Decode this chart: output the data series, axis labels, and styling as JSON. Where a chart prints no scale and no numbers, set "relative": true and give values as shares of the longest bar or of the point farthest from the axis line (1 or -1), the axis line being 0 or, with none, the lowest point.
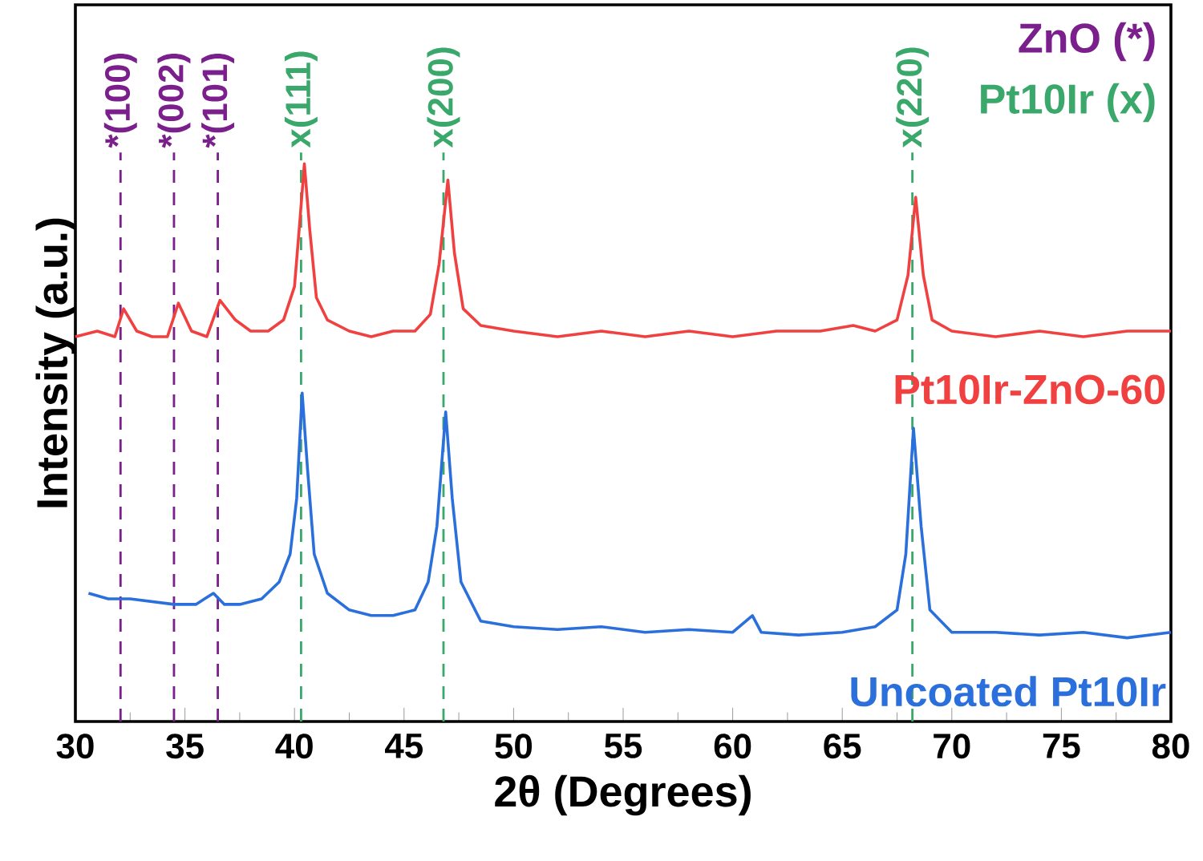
{
  "chart_data": {
    "type": "line",
    "relative": true,
    "xlabel": "2θ (Degrees)",
    "ylabel": "Intensity (a.u.)",
    "xlim": [
      30,
      80
    ],
    "xticks": [
      30,
      35,
      40,
      45,
      50,
      55,
      60,
      65,
      70,
      75,
      80
    ],
    "tick_labels": "x",
    "annotations": [
      "ZnO (*)",
      "Pt10Ir (x)",
      {
        "text": "*(100)",
        "x": 32.06,
        "y": 1.02
      },
      {
        "text": "*(002)",
        "x": 34.5,
        "y": 1.02
      },
      {
        "text": "*(101)",
        "x": 36.5,
        "y": 1.02
      },
      {
        "text": "x(111)",
        "x": 40.3,
        "y": 1.02
      },
      {
        "text": "x(200)",
        "x": 46.8,
        "y": 1.02
      },
      {
        "text": "x(220)",
        "x": 68.2,
        "y": 1.02
      }
    ],
    "ref_lines": [
      {
        "axis": "x",
        "value": 32.06,
        "color": "#7a1f8c",
        "line_style": "dashed"
      },
      {
        "axis": "x",
        "value": 34.5,
        "color": "#7a1f8c",
        "line_style": "dashed"
      },
      {
        "axis": "x",
        "value": 36.5,
        "color": "#7a1f8c",
        "line_style": "dashed"
      },
      {
        "axis": "x",
        "value": 40.3,
        "color": "#3aa86b",
        "line_style": "dashed"
      },
      {
        "axis": "x",
        "value": 46.8,
        "color": "#3aa86b",
        "line_style": "dashed"
      },
      {
        "axis": "x",
        "value": 68.2,
        "color": "#3aa86b",
        "line_style": "dashed"
      }
    ],
    "series": [
      {
        "name": "Pt10Ir-ZnO-60",
        "color": "#f04040",
        "x": [
          30,
          31,
          31.8,
          32.2,
          32.8,
          33.5,
          34.2,
          34.7,
          35.3,
          36.0,
          36.6,
          37.3,
          38,
          38.8,
          39.5,
          40.0,
          40.25,
          40.45,
          40.7,
          41.0,
          41.5,
          42.5,
          43.5,
          44.5,
          45.5,
          46.2,
          46.6,
          47.0,
          47.3,
          47.7,
          48.5,
          50,
          52,
          54,
          56,
          58,
          60,
          62,
          64,
          65.5,
          66.5,
          67.5,
          68.0,
          68.35,
          68.7,
          69.1,
          70,
          72,
          74,
          76,
          78,
          80
        ],
        "values": [
          0.69,
          0.7,
          0.69,
          0.74,
          0.7,
          0.69,
          0.69,
          0.75,
          0.7,
          0.69,
          0.755,
          0.72,
          0.7,
          0.7,
          0.72,
          0.78,
          0.9,
          1.0,
          0.88,
          0.76,
          0.72,
          0.7,
          0.69,
          0.7,
          0.7,
          0.73,
          0.82,
          0.971,
          0.84,
          0.74,
          0.71,
          0.7,
          0.69,
          0.7,
          0.69,
          0.7,
          0.69,
          0.7,
          0.7,
          0.71,
          0.7,
          0.72,
          0.8,
          0.94,
          0.8,
          0.72,
          0.7,
          0.69,
          0.7,
          0.69,
          0.7,
          0.7
        ]
      },
      {
        "name": "Uncoated Pt10Ir",
        "color": "#2a6fdb",
        "x": [
          30.6,
          31.5,
          32.5,
          33.5,
          34.5,
          35.5,
          36.3,
          36.8,
          37.5,
          38.5,
          39.3,
          39.8,
          40.1,
          40.35,
          40.6,
          40.9,
          41.5,
          42.5,
          43.5,
          44.5,
          45.5,
          46.1,
          46.5,
          46.9,
          47.2,
          47.6,
          48.5,
          50,
          52,
          54,
          56,
          58,
          60,
          60.9,
          61.3,
          63,
          65,
          66.5,
          67.5,
          67.9,
          68.25,
          68.6,
          69.0,
          70,
          72,
          74,
          76,
          78,
          80
        ],
        "values": [
          0.23,
          0.22,
          0.22,
          0.215,
          0.21,
          0.21,
          0.23,
          0.21,
          0.21,
          0.22,
          0.25,
          0.3,
          0.4,
          0.589,
          0.45,
          0.3,
          0.23,
          0.2,
          0.19,
          0.19,
          0.2,
          0.25,
          0.35,
          0.555,
          0.4,
          0.25,
          0.18,
          0.17,
          0.165,
          0.17,
          0.16,
          0.165,
          0.16,
          0.19,
          0.16,
          0.155,
          0.16,
          0.17,
          0.2,
          0.3,
          0.526,
          0.35,
          0.2,
          0.16,
          0.16,
          0.155,
          0.16,
          0.15,
          0.16
        ]
      }
    ]
  }
}
